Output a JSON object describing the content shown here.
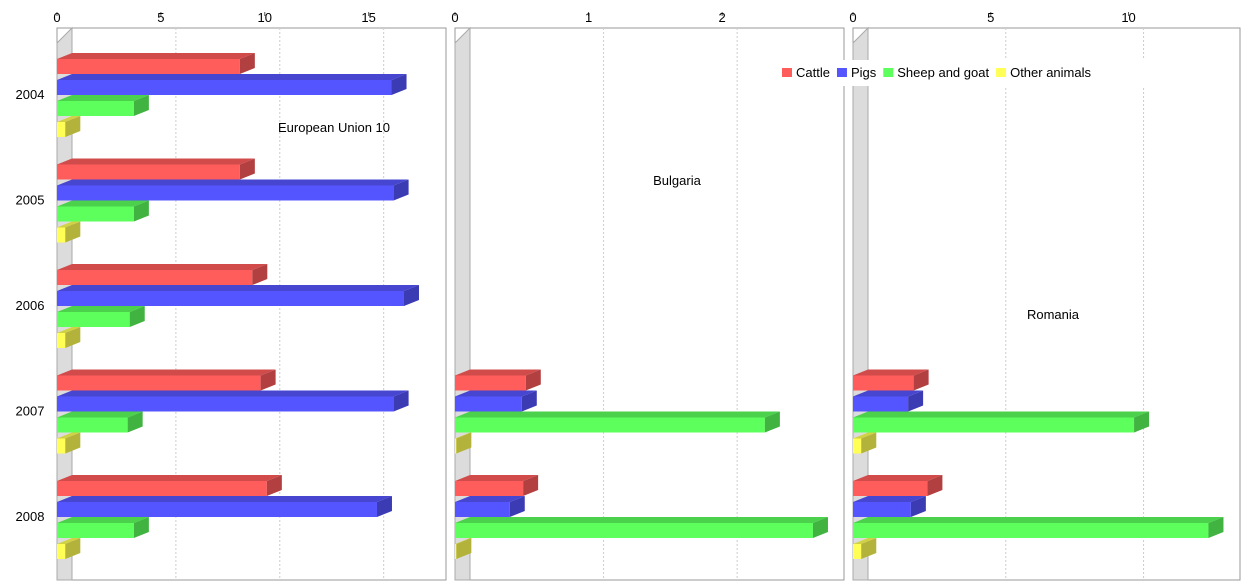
{
  "chart_data": {
    "type": "bar",
    "orientation": "horizontal",
    "categories": [
      "2004",
      "2005",
      "2006",
      "2007",
      "2008"
    ],
    "legend": {
      "placement": "top-right",
      "items": [
        {
          "label": "Cattle",
          "color": "#ff5c5c"
        },
        {
          "label": "Pigs",
          "color": "#5555ff"
        },
        {
          "label": "Sheep and goat",
          "color": "#5cff5c"
        },
        {
          "label": "Other animals",
          "color": "#ffff55"
        }
      ]
    },
    "grid": true,
    "panels": [
      {
        "title": "European Union 10",
        "ticks": [
          0,
          5,
          10,
          15
        ],
        "xlim": [
          0,
          18
        ],
        "series": [
          {
            "name": "Cattle",
            "values": [
              8.8,
              8.8,
              9.4,
              9.8,
              10.1
            ]
          },
          {
            "name": "Pigs",
            "values": [
              16.1,
              16.2,
              16.7,
              16.2,
              15.4
            ]
          },
          {
            "name": "Sheep and goat",
            "values": [
              3.7,
              3.7,
              3.5,
              3.4,
              3.7
            ]
          },
          {
            "name": "Other animals",
            "values": [
              0.4,
              0.4,
              0.4,
              0.4,
              0.4
            ]
          }
        ]
      },
      {
        "title": "Bulgaria",
        "ticks": [
          0,
          1,
          2
        ],
        "xlim": [
          0,
          2.8
        ],
        "series": [
          {
            "name": "Cattle",
            "values": [
              0,
              0,
              0,
              0.53,
              0.51
            ]
          },
          {
            "name": "Pigs",
            "values": [
              0,
              0,
              0,
              0.5,
              0.41
            ]
          },
          {
            "name": "Sheep and goat",
            "values": [
              0,
              0,
              0,
              2.32,
              2.68
            ]
          },
          {
            "name": "Other animals",
            "values": [
              0,
              0,
              0,
              0.01,
              0.01
            ]
          }
        ]
      },
      {
        "title": "Romania",
        "ticks": [
          0,
          5,
          10
        ],
        "xlim": [
          0,
          13.5
        ],
        "series": [
          {
            "name": "Cattle",
            "values": [
              0,
              0,
              0,
              2.2,
              2.7
            ]
          },
          {
            "name": "Pigs",
            "values": [
              0,
              0,
              0,
              2.0,
              2.1
            ]
          },
          {
            "name": "Sheep and goat",
            "values": [
              0,
              0,
              0,
              10.2,
              12.9
            ]
          },
          {
            "name": "Other animals",
            "values": [
              0,
              0,
              0,
              0.3,
              0.3
            ]
          }
        ]
      }
    ]
  }
}
